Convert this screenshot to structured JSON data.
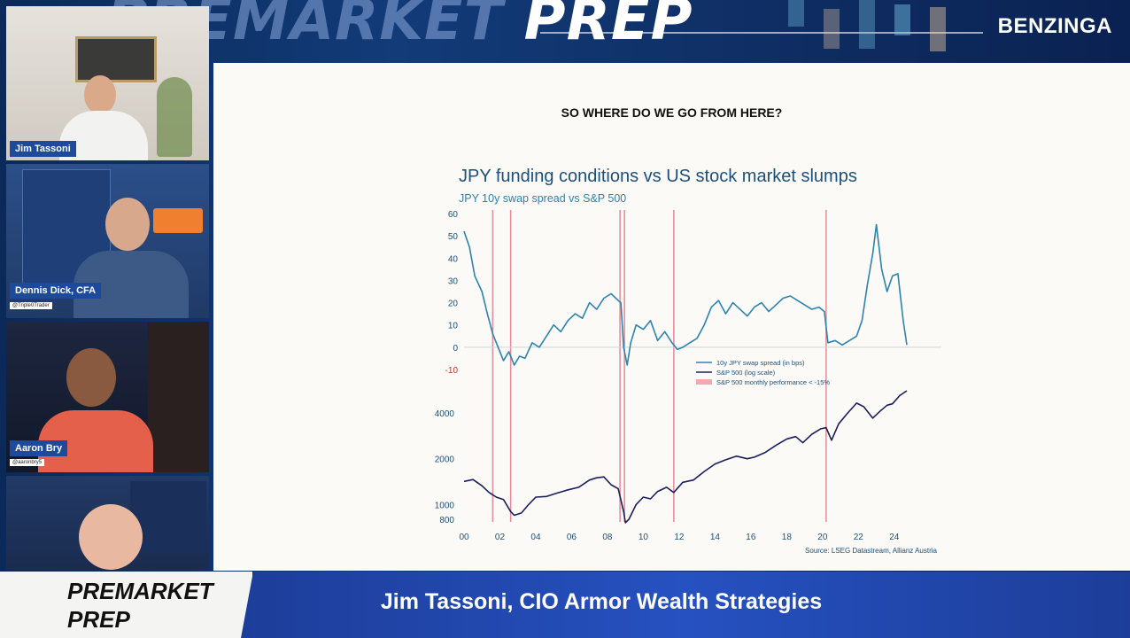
{
  "banner": {
    "show_name_faded": "PREMARKET ",
    "show_name_solid": "PREP",
    "brand": "BENZINGA"
  },
  "webcams": [
    {
      "name": "Jim Tassoni",
      "handle": ""
    },
    {
      "name": "Dennis Dick, CFA",
      "handle": "@Triple0Trader"
    },
    {
      "name": "Aaron Bry",
      "handle": "@aaronbry5"
    },
    {
      "name": "",
      "handle": ""
    }
  ],
  "slide": {
    "heading": "SO WHERE DO WE GO FROM HERE?"
  },
  "chart_data": {
    "type": "line",
    "title": "JPY funding conditions vs US stock market slumps",
    "subtitle": "JPY 10y swap spread vs S&P 500",
    "source": "Source: LSEG Datastream, Allianz Austria",
    "x_tick_labels": [
      "00",
      "02",
      "04",
      "06",
      "08",
      "10",
      "12",
      "14",
      "16",
      "18",
      "20",
      "22",
      "24"
    ],
    "x_range": [
      2000,
      2024.8
    ],
    "top_panel": {
      "y_ticks": [
        60,
        50,
        40,
        30,
        20,
        10,
        0,
        -10
      ],
      "ylim": [
        -10,
        60
      ],
      "series": {
        "name": "10y JPY swap spread (in bps)",
        "color": "#2b83b0",
        "x": [
          2000.0,
          2000.3,
          2000.6,
          2001.0,
          2001.3,
          2001.6,
          2001.9,
          2002.2,
          2002.5,
          2002.8,
          2003.1,
          2003.4,
          2003.8,
          2004.2,
          2004.6,
          2005.0,
          2005.4,
          2005.8,
          2006.2,
          2006.6,
          2007.0,
          2007.4,
          2007.8,
          2008.2,
          2008.6,
          2008.75,
          2008.9,
          2009.1,
          2009.3,
          2009.6,
          2010.0,
          2010.4,
          2010.8,
          2011.2,
          2011.6,
          2011.9,
          2012.2,
          2012.6,
          2013.0,
          2013.4,
          2013.8,
          2014.2,
          2014.6,
          2015.0,
          2015.4,
          2015.8,
          2016.2,
          2016.6,
          2017.0,
          2017.4,
          2017.8,
          2018.2,
          2018.6,
          2019.0,
          2019.4,
          2019.8,
          2020.1,
          2020.3,
          2020.7,
          2021.1,
          2021.5,
          2021.9,
          2022.2,
          2022.5,
          2022.8,
          2023.0,
          2023.3,
          2023.6,
          2023.9,
          2024.2,
          2024.5,
          2024.7
        ],
        "y": [
          52,
          45,
          32,
          25,
          15,
          6,
          0,
          -6,
          -2,
          -8,
          -4,
          -5,
          2,
          0,
          5,
          10,
          7,
          12,
          15,
          13,
          20,
          17,
          22,
          24,
          21,
          20,
          0,
          -8,
          2,
          10,
          8,
          12,
          3,
          7,
          2,
          -1,
          0,
          2,
          4,
          10,
          18,
          21,
          15,
          20,
          17,
          14,
          18,
          20,
          16,
          19,
          22,
          23,
          21,
          19,
          17,
          18,
          16,
          2,
          3,
          1,
          3,
          5,
          12,
          28,
          42,
          55,
          35,
          25,
          32,
          33,
          12,
          1
        ]
      }
    },
    "bottom_panel": {
      "y_ticks": [
        4000,
        2000,
        1000,
        800
      ],
      "ylim": [
        700,
        5600
      ],
      "scale": "log",
      "series": {
        "name": "S&P 500 (log scale)",
        "color": "#1a1f5c",
        "x": [
          2000.0,
          2000.5,
          2001.0,
          2001.4,
          2001.8,
          2002.2,
          2002.6,
          2002.8,
          2003.2,
          2003.6,
          2004.0,
          2004.6,
          2005.2,
          2005.8,
          2006.4,
          2007.0,
          2007.4,
          2007.8,
          2008.2,
          2008.6,
          2008.9,
          2009.0,
          2009.2,
          2009.6,
          2010.0,
          2010.4,
          2010.8,
          2011.3,
          2011.7,
          2012.2,
          2012.8,
          2013.4,
          2014.0,
          2014.6,
          2015.2,
          2015.8,
          2016.2,
          2016.8,
          2017.4,
          2018.0,
          2018.5,
          2018.9,
          2019.4,
          2019.9,
          2020.2,
          2020.5,
          2020.9,
          2021.4,
          2021.9,
          2022.3,
          2022.8,
          2023.2,
          2023.6,
          2023.9,
          2024.3,
          2024.7
        ],
        "y": [
          1420,
          1460,
          1330,
          1200,
          1120,
          1080,
          900,
          850,
          880,
          1000,
          1120,
          1130,
          1190,
          1250,
          1300,
          1450,
          1500,
          1520,
          1350,
          1270,
          900,
          760,
          800,
          1000,
          1120,
          1090,
          1220,
          1300,
          1200,
          1400,
          1450,
          1650,
          1850,
          1970,
          2080,
          2000,
          2050,
          2200,
          2450,
          2700,
          2800,
          2550,
          2900,
          3150,
          3200,
          2650,
          3400,
          4000,
          4650,
          4400,
          3700,
          4100,
          4500,
          4600,
          5200,
          5600
        ]
      }
    },
    "legend": [
      {
        "label": "10y JPY swap spread (in bps)",
        "type": "line",
        "color": "#2b83b0"
      },
      {
        "label": "S&P 500 (log scale)",
        "type": "line",
        "color": "#1a1f5c"
      },
      {
        "label": "S&P 500 monthly performance < -15%",
        "type": "band",
        "color": "#f2a9b3"
      }
    ],
    "slump_markers": [
      2001.6,
      2002.6,
      2008.7,
      2008.95,
      2011.7,
      2020.2
    ],
    "marker_color": "#e58a98"
  },
  "lower_third": {
    "logo_line1": "PREMARKET",
    "logo_line2": "PREP",
    "caption": "Jim Tassoni, CIO Armor Wealth Strategies"
  }
}
